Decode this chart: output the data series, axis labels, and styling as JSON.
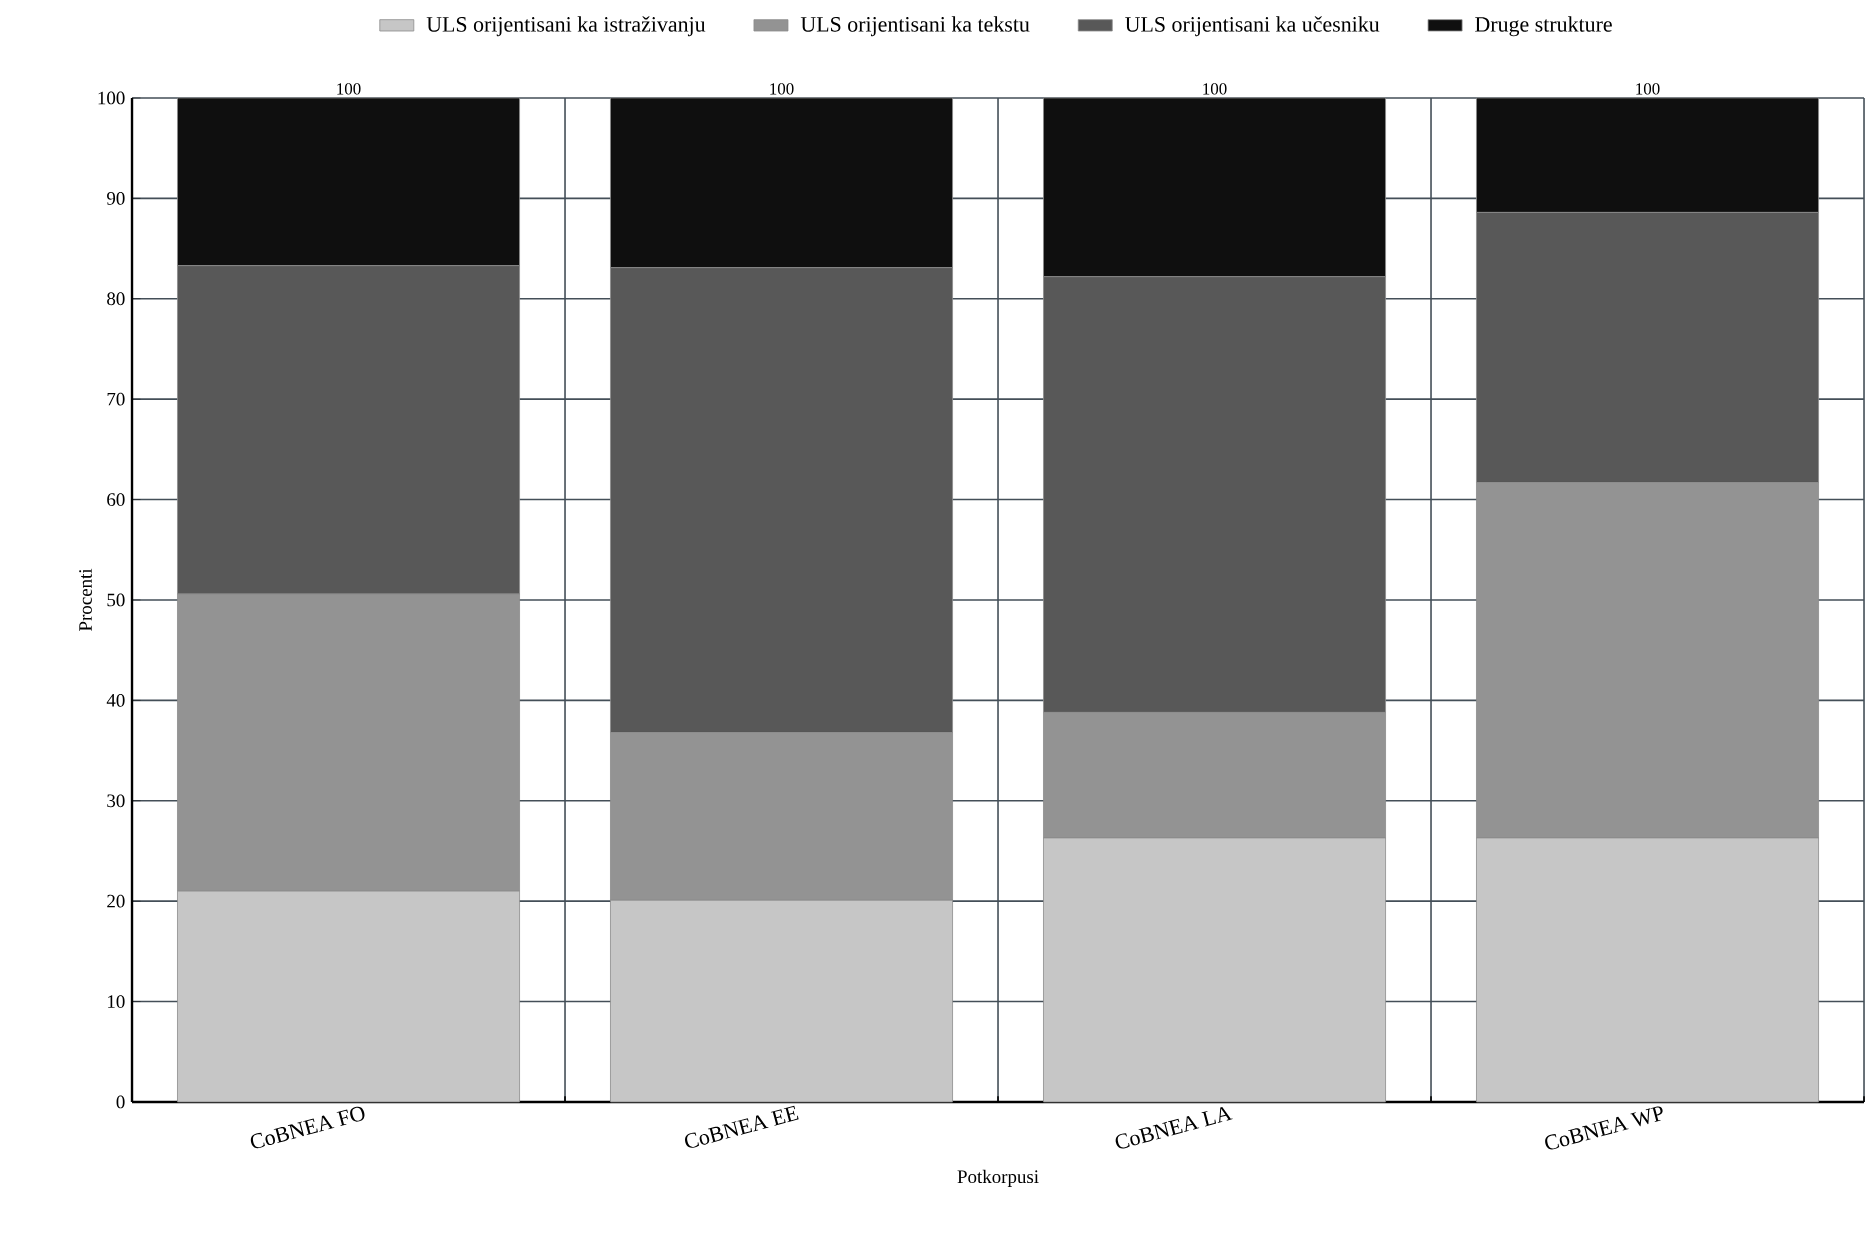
{
  "chart_data": {
    "type": "bar",
    "stacked": true,
    "xlabel": "Potkorpusi",
    "ylabel": "Procenti",
    "categories": [
      "CoBNEA FO",
      "CoBNEA EE",
      "CoBNEA LA",
      "CoBNEA WP"
    ],
    "series": [
      {
        "name": "ULS orijentisani ka istraživanju",
        "color": "#c6c6c6",
        "values": [
          21.0,
          20.1,
          26.3,
          26.3
        ]
      },
      {
        "name": "ULS orijentisani ka tekstu",
        "color": "#939393",
        "values": [
          29.6,
          16.7,
          12.5,
          35.4
        ]
      },
      {
        "name": "ULS orijentisani ka učesniku",
        "color": "#585858",
        "values": [
          32.7,
          46.3,
          43.4,
          26.9
        ]
      },
      {
        "name": "Druge strukture",
        "color": "#0f0f0f",
        "values": [
          16.7,
          16.9,
          17.8,
          11.4
        ]
      }
    ],
    "totals": [
      "100",
      "100",
      "100",
      "100"
    ],
    "ylim": [
      0,
      100
    ],
    "yticks": [
      0,
      10,
      20,
      30,
      40,
      50,
      60,
      70,
      80,
      90,
      100
    ],
    "grid": true,
    "legend": "top"
  }
}
